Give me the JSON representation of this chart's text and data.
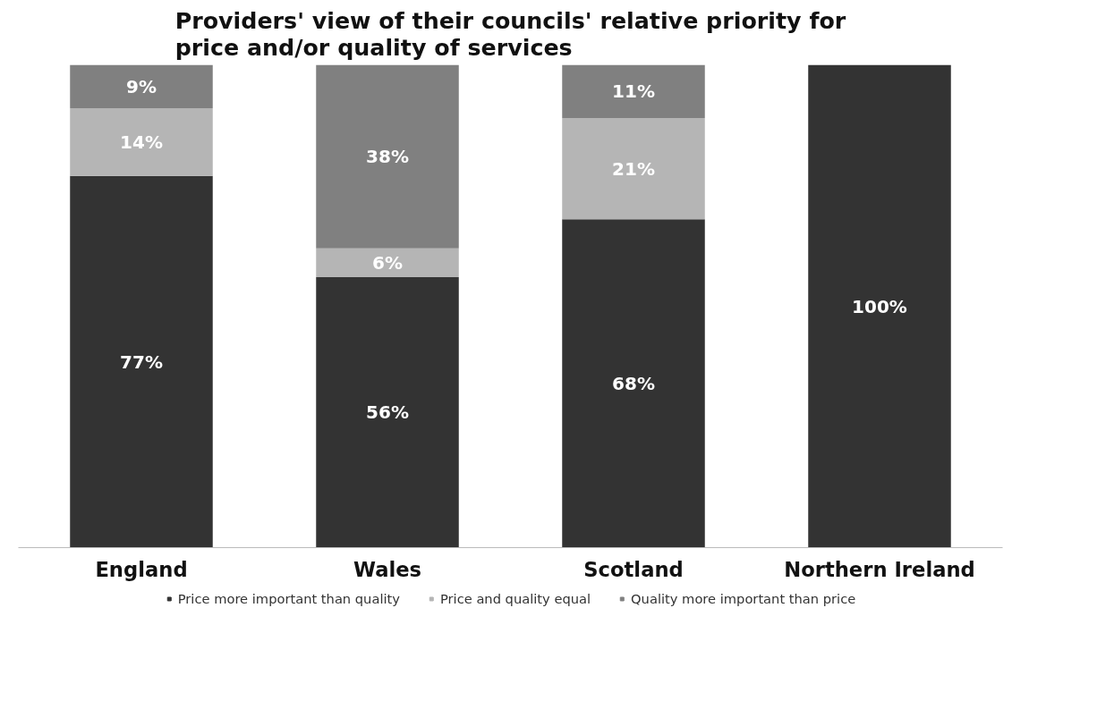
{
  "chart_data": {
    "type": "bar",
    "title": "Providers' view of their councils' relative priority for\nprice and/or quality of services",
    "categories": [
      "England",
      "Wales",
      "Scotland",
      "Northern Ireland"
    ],
    "stacked": true,
    "ylim": [
      0,
      100
    ],
    "tick_labels": "x",
    "grid": false,
    "legend": "bottom",
    "series": [
      {
        "name": "Price more important than quality",
        "color": "#333333",
        "values": [
          77,
          56,
          68,
          100
        ],
        "value_labels": [
          "77%",
          "56%",
          "68%",
          "100%"
        ]
      },
      {
        "name": "Price and quality equal",
        "color": "#b5b5b5",
        "values": [
          14,
          6,
          21,
          0
        ],
        "value_labels": [
          "14%",
          "6%",
          "21%",
          null
        ]
      },
      {
        "name": "Quality more important than price",
        "color": "#808080",
        "values": [
          9,
          38,
          11,
          0
        ],
        "value_labels": [
          "9%",
          "38%",
          "11%",
          null
        ]
      }
    ]
  }
}
